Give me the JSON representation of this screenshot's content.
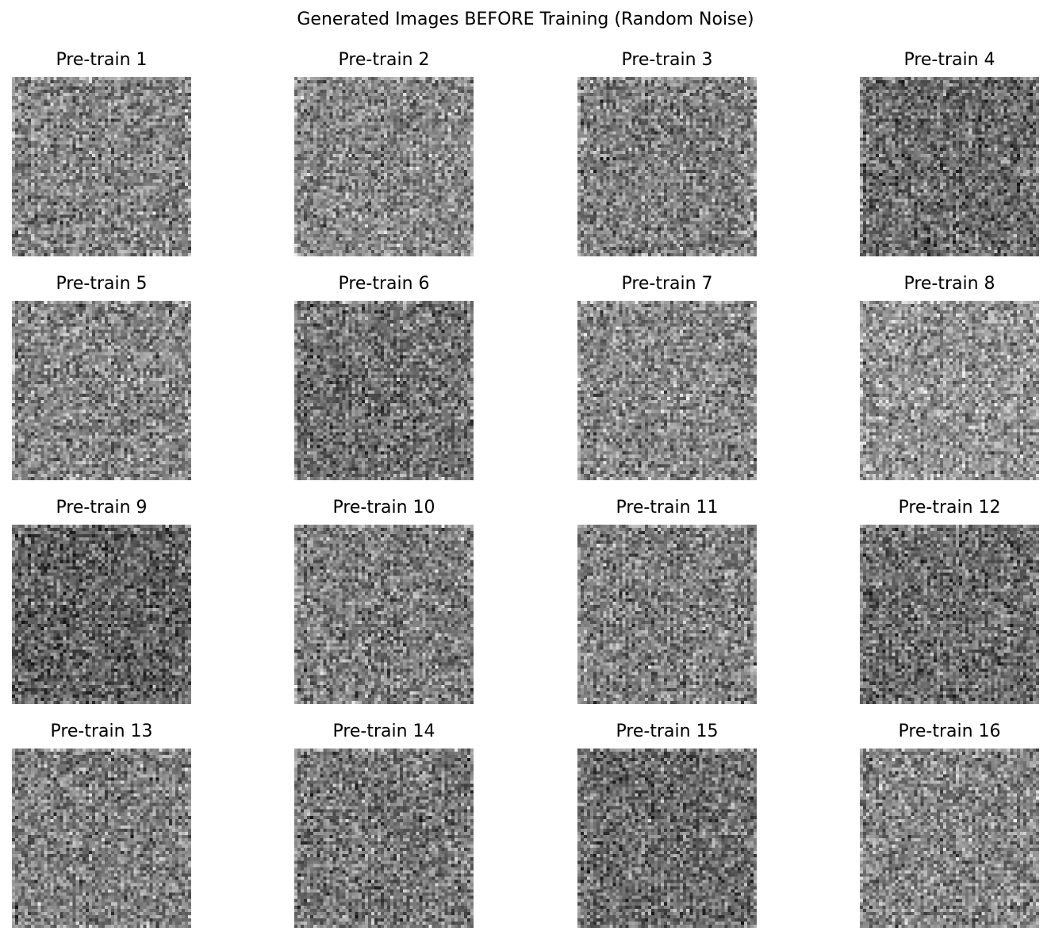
{
  "figure": {
    "title": "Generated Images BEFORE Training (Random Noise)"
  },
  "panels": [
    {
      "title": "Pre-train 1",
      "brightness": 0.52
    },
    {
      "title": "Pre-train 2",
      "brightness": 0.53
    },
    {
      "title": "Pre-train 3",
      "brightness": 0.5
    },
    {
      "title": "Pre-train 4",
      "brightness": 0.42
    },
    {
      "title": "Pre-train 5",
      "brightness": 0.52
    },
    {
      "title": "Pre-train 6",
      "brightness": 0.45
    },
    {
      "title": "Pre-train 7",
      "brightness": 0.53
    },
    {
      "title": "Pre-train 8",
      "brightness": 0.58
    },
    {
      "title": "Pre-train 9",
      "brightness": 0.38
    },
    {
      "title": "Pre-train 10",
      "brightness": 0.49
    },
    {
      "title": "Pre-train 11",
      "brightness": 0.5
    },
    {
      "title": "Pre-train 12",
      "brightness": 0.43
    },
    {
      "title": "Pre-train 13",
      "brightness": 0.5
    },
    {
      "title": "Pre-train 14",
      "brightness": 0.47
    },
    {
      "title": "Pre-train 15",
      "brightness": 0.43
    },
    {
      "title": "Pre-train 16",
      "brightness": 0.52
    }
  ]
}
